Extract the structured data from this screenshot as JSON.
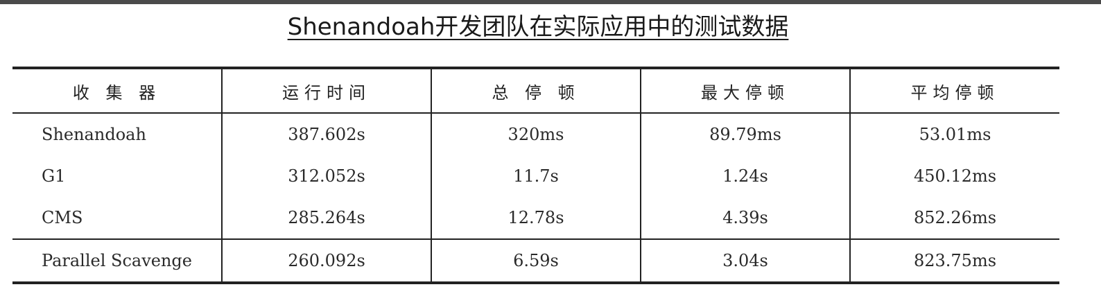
{
  "title": "Shenandoah开发团队在实际应用中的测试数据",
  "table": {
    "headers": [
      "收 集 器",
      "运行时间",
      "总 停 顿",
      "最大停顿",
      "平均停顿"
    ],
    "rows": [
      [
        "Shenandoah",
        "387.602s",
        "320ms",
        "89.79ms",
        "53.01ms"
      ],
      [
        "G1",
        "312.052s",
        "11.7s",
        "1.24s",
        "450.12ms"
      ],
      [
        "CMS",
        "285.264s",
        "12.78s",
        "4.39s",
        "852.26ms"
      ],
      [
        "Parallel Scavenge",
        "260.092s",
        "6.59s",
        "3.04s",
        "823.75ms"
      ]
    ]
  }
}
